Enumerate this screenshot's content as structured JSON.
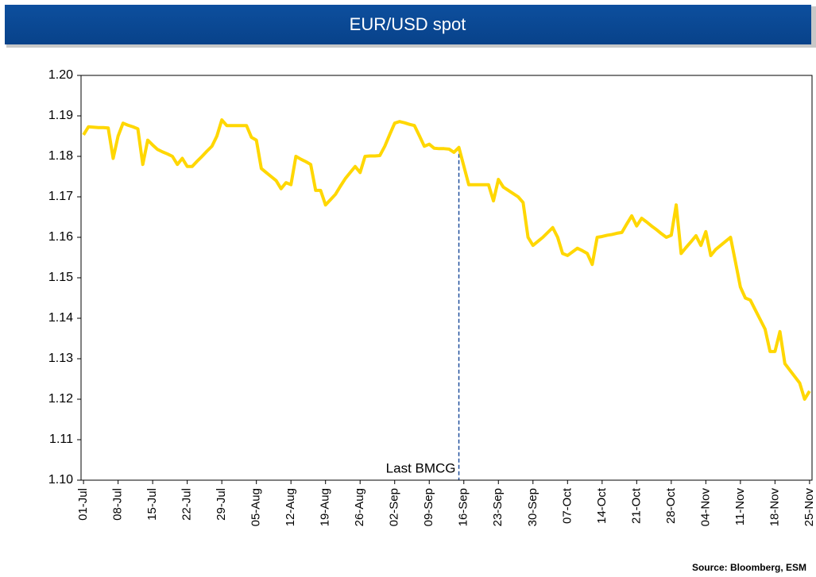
{
  "chart_data": {
    "type": "line",
    "title": "EUR/USD spot",
    "source": "Source: Bloomberg, ESM",
    "categories": [
      "01-Jul",
      null,
      null,
      null,
      null,
      null,
      null,
      "08-Jul",
      null,
      null,
      null,
      null,
      null,
      null,
      "15-Jul",
      null,
      null,
      null,
      null,
      null,
      null,
      "22-Jul",
      null,
      null,
      null,
      null,
      null,
      null,
      "29-Jul",
      null,
      null,
      null,
      null,
      null,
      null,
      "05-Aug",
      null,
      null,
      null,
      null,
      null,
      null,
      "12-Aug",
      null,
      null,
      null,
      null,
      null,
      null,
      "19-Aug",
      null,
      null,
      null,
      null,
      null,
      null,
      "26-Aug",
      null,
      null,
      null,
      null,
      null,
      null,
      "02-Sep",
      null,
      null,
      null,
      null,
      null,
      null,
      "09-Sep",
      null,
      null,
      null,
      null,
      null,
      null,
      "16-Sep",
      null,
      null,
      null,
      null,
      null,
      null,
      "23-Sep",
      null,
      null,
      null,
      null,
      null,
      null,
      "30-Sep",
      null,
      null,
      null,
      null,
      null,
      null,
      "07-Oct",
      null,
      null,
      null,
      null,
      null,
      null,
      "14-Oct",
      null,
      null,
      null,
      null,
      null,
      null,
      "21-Oct",
      null,
      null,
      null,
      null,
      null,
      null,
      "28-Oct",
      null,
      null,
      null,
      null,
      null,
      null,
      "04-Nov",
      null,
      null,
      null,
      null,
      null,
      null,
      "11-Nov",
      null,
      null,
      null,
      null,
      null,
      null,
      "18-Nov",
      null,
      null,
      null,
      null,
      null,
      null,
      "25-Nov"
    ],
    "series": [
      {
        "name": "EUR/USD spot",
        "color": "#ffd700",
        "values": [
          1.1853,
          1.1873,
          1.1872,
          1.1871,
          1.1871,
          1.187,
          1.1795,
          1.185,
          1.1882,
          1.1877,
          1.1873,
          1.1868,
          1.178,
          1.184,
          1.1828,
          1.1817,
          1.1811,
          1.1806,
          1.18,
          1.178,
          1.1795,
          1.1775,
          1.1775,
          1.1788,
          1.18,
          1.1813,
          1.1825,
          1.185,
          1.189,
          1.1876,
          1.1876,
          1.1876,
          1.1876,
          1.1876,
          1.1847,
          1.184,
          1.177,
          1.176,
          1.175,
          1.174,
          1.172,
          1.1735,
          1.173,
          1.18,
          1.1793,
          1.1787,
          1.178,
          1.1716,
          1.1716,
          1.168,
          1.1693,
          1.1706,
          1.1726,
          1.1745,
          1.176,
          1.1775,
          1.176,
          1.18,
          1.1801,
          1.1801,
          1.1802,
          1.1825,
          1.1854,
          1.1882,
          1.1886,
          1.1883,
          1.1879,
          1.1876,
          1.1851,
          1.1825,
          1.183,
          1.182,
          1.1819,
          1.1819,
          1.1818,
          1.181,
          1.1822,
          1.1776,
          1.173,
          1.173,
          1.173,
          1.173,
          1.173,
          1.169,
          1.1743,
          1.1724,
          1.1716,
          1.1708,
          1.17,
          1.1686,
          1.16,
          1.158,
          1.159,
          1.16,
          1.1612,
          1.1624,
          1.16,
          1.156,
          1.1555,
          1.1564,
          1.1573,
          1.1567,
          1.156,
          1.1533,
          1.16,
          1.1602,
          1.1605,
          1.1607,
          1.161,
          1.1612,
          1.1633,
          1.1653,
          1.1628,
          1.1647,
          1.1638,
          1.1628,
          1.1619,
          1.1609,
          1.16,
          1.1605,
          1.168,
          1.156,
          1.1575,
          1.1589,
          1.1604,
          1.158,
          1.1614,
          1.1555,
          1.157,
          1.158,
          1.159,
          1.16,
          1.1539,
          1.1477,
          1.145,
          1.1445,
          1.1421,
          1.1397,
          1.1373,
          1.1318,
          1.1318,
          1.1367,
          1.1288,
          1.1272,
          1.1256,
          1.124,
          1.12,
          1.122
        ]
      }
    ],
    "ylim": [
      1.1,
      1.2
    ],
    "yticks": [
      {
        "value": 1.1,
        "label": "1.10"
      },
      {
        "value": 1.11,
        "label": "1.11"
      },
      {
        "value": 1.12,
        "label": "1.12"
      },
      {
        "value": 1.13,
        "label": "1.13"
      },
      {
        "value": 1.14,
        "label": "1.14"
      },
      {
        "value": 1.15,
        "label": "1.15"
      },
      {
        "value": 1.16,
        "label": "1.16"
      },
      {
        "value": 1.17,
        "label": "1.17"
      },
      {
        "value": 1.18,
        "label": "1.18"
      },
      {
        "value": 1.19,
        "label": "1.19"
      },
      {
        "value": 1.2,
        "label": "1.20"
      }
    ],
    "grid": false,
    "annotation": {
      "text": "Last BMCG",
      "category": "16-Sep",
      "color": "#1f4e9c"
    }
  }
}
